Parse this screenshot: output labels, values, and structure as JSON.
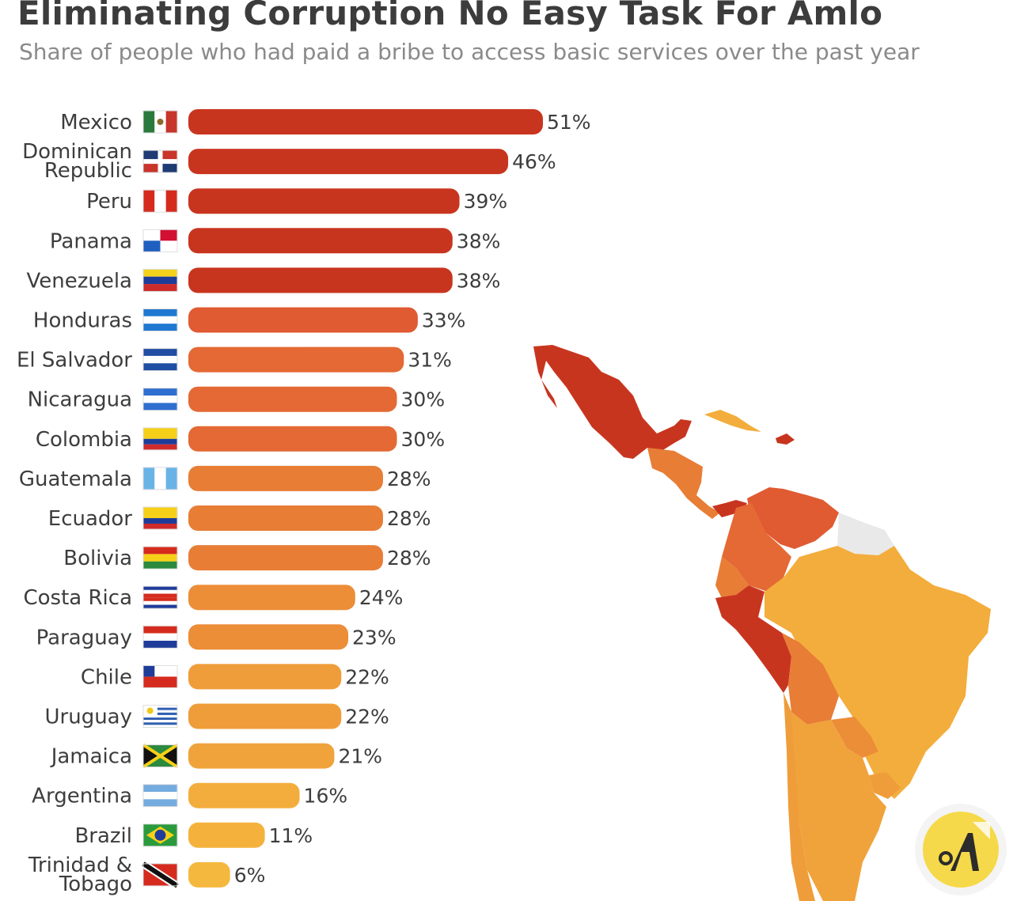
{
  "title": "Eliminating Corruption No Easy Task For Amlo",
  "subtitle": "Share of people who had paid a bribe to access basic services over the past year",
  "chart_data": {
    "type": "bar",
    "orientation": "horizontal",
    "categories": [
      "Mexico",
      "Dominican Republic",
      "Peru",
      "Panama",
      "Venezuela",
      "Honduras",
      "El Salvador",
      "Nicaragua",
      "Colombia",
      "Guatemala",
      "Ecuador",
      "Bolivia",
      "Costa Rica",
      "Paraguay",
      "Chile",
      "Uruguay",
      "Jamaica",
      "Argentina",
      "Brazil",
      "Trinidad & Tobago"
    ],
    "category_lines": [
      [
        "Mexico"
      ],
      [
        "Dominican",
        "Republic"
      ],
      [
        "Peru"
      ],
      [
        "Panama"
      ],
      [
        "Venezuela"
      ],
      [
        "Honduras"
      ],
      [
        "El Salvador"
      ],
      [
        "Nicaragua"
      ],
      [
        "Colombia"
      ],
      [
        "Guatemala"
      ],
      [
        "Ecuador"
      ],
      [
        "Bolivia"
      ],
      [
        "Costa Rica"
      ],
      [
        "Paraguay"
      ],
      [
        "Chile"
      ],
      [
        "Uruguay"
      ],
      [
        "Jamaica"
      ],
      [
        "Argentina"
      ],
      [
        "Brazil"
      ],
      [
        "Trinidad &",
        "Tobago"
      ]
    ],
    "values": [
      51,
      46,
      39,
      38,
      38,
      33,
      31,
      30,
      30,
      28,
      28,
      28,
      24,
      23,
      22,
      22,
      21,
      16,
      11,
      6
    ],
    "value_labels": [
      "51%",
      "46%",
      "39%",
      "38%",
      "38%",
      "33%",
      "31%",
      "30%",
      "30%",
      "28%",
      "28%",
      "28%",
      "24%",
      "23%",
      "22%",
      "22%",
      "21%",
      "16%",
      "11%",
      "6%"
    ],
    "bar_colors": [
      "#c8351f",
      "#c8351f",
      "#c8351f",
      "#c8351f",
      "#c8351f",
      "#e05a32",
      "#e46934",
      "#e46934",
      "#e46934",
      "#e87d36",
      "#e87d36",
      "#e87d36",
      "#ec8d38",
      "#ec8d38",
      "#ef9d3a",
      "#ef9d3a",
      "#f0a33b",
      "#f3ad3c",
      "#f4b23d",
      "#f5b83f"
    ],
    "flag_icons": [
      "mexico-flag-icon",
      "dominican-republic-flag-icon",
      "peru-flag-icon",
      "panama-flag-icon",
      "venezuela-flag-icon",
      "honduras-flag-icon",
      "el-salvador-flag-icon",
      "nicaragua-flag-icon",
      "colombia-flag-icon",
      "guatemala-flag-icon",
      "ecuador-flag-icon",
      "bolivia-flag-icon",
      "costa-rica-flag-icon",
      "paraguay-flag-icon",
      "chile-flag-icon",
      "uruguay-flag-icon",
      "jamaica-flag-icon",
      "argentina-flag-icon",
      "brazil-flag-icon",
      "trinidad-tobago-flag-icon"
    ],
    "xlim": [
      0,
      51
    ],
    "unit": "%",
    "grid": false,
    "legend": "none"
  },
  "map": {
    "icon": "latin-america-choropleth-map",
    "colors": {
      "dark": "#c8351f",
      "mid": "#e46934",
      "orange": "#e87d36",
      "light": "#f0a33b",
      "pale": "#f3b13d",
      "nodata": "#e9e9e9"
    }
  },
  "logo": {
    "icon": "yellow-circle-brand-logo",
    "color": "#f6d94a"
  }
}
